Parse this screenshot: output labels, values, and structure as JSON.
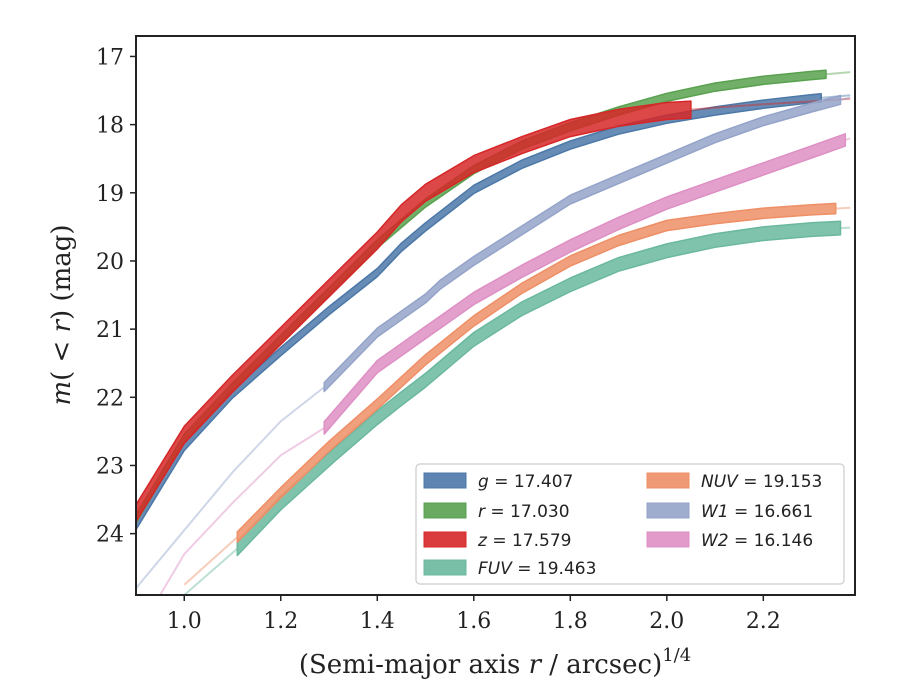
{
  "chart_data": {
    "type": "line",
    "title": "",
    "xlabel": "(Semi-major axis r / arcsec)",
    "xlabel_parts": {
      "prefix": "(Semi-major axis ",
      "var": "r",
      "suffix": " / arcsec)",
      "exponent": "1/4"
    },
    "ylabel": "m(< r) (mag)",
    "ylabel_parts": {
      "m": "m",
      "open": "(",
      "lt": " < ",
      "r": "r",
      "close": ")",
      "unit": " (mag)"
    },
    "xlim": [
      0.9,
      2.39
    ],
    "ylim": [
      24.9,
      16.7
    ],
    "y_inverted": true,
    "xticks": [
      1.0,
      1.2,
      1.4,
      1.6,
      1.8,
      2.0,
      2.2
    ],
    "xtick_labels": [
      "1.0",
      "1.2",
      "1.4",
      "1.6",
      "1.8",
      "2.0",
      "2.2"
    ],
    "yticks": [
      17,
      18,
      19,
      20,
      21,
      22,
      23,
      24
    ],
    "ytick_labels": [
      "17",
      "18",
      "19",
      "20",
      "21",
      "22",
      "23",
      "24"
    ],
    "grid": false,
    "legend_position": "lower-right",
    "legend_columns": 2,
    "series": [
      {
        "name": "g",
        "legend_label": "g = 17.407",
        "color": "#4C78A8",
        "band_width": 0.12,
        "x": [
          0.9,
          1.0,
          1.1,
          1.2,
          1.3,
          1.4,
          1.45,
          1.5,
          1.6,
          1.7,
          1.8,
          1.9,
          2.0,
          2.1,
          2.2,
          2.3,
          2.38
        ],
        "y": [
          23.88,
          22.72,
          21.95,
          21.33,
          20.73,
          20.17,
          19.8,
          19.5,
          18.95,
          18.58,
          18.3,
          18.08,
          17.92,
          17.8,
          17.7,
          17.62,
          17.57
        ],
        "faint_from": 2.32
      },
      {
        "name": "r",
        "legend_label": "r = 17.030",
        "color": "#59A14F",
        "band_width": 0.12,
        "x": [
          0.9,
          1.0,
          1.1,
          1.2,
          1.3,
          1.4,
          1.5,
          1.6,
          1.7,
          1.8,
          1.9,
          2.0,
          2.1,
          2.2,
          2.3,
          2.38
        ],
        "y": [
          23.78,
          22.6,
          21.85,
          21.15,
          20.45,
          19.75,
          19.15,
          18.66,
          18.3,
          18.03,
          17.8,
          17.6,
          17.45,
          17.35,
          17.28,
          17.23
        ],
        "faint_from": 2.33
      },
      {
        "name": "z",
        "legend_label": "z = 17.579",
        "color": "#D62728",
        "band_width": 0.25,
        "x": [
          0.9,
          1.0,
          1.1,
          1.2,
          1.3,
          1.4,
          1.45,
          1.5,
          1.6,
          1.7,
          1.8,
          1.9,
          2.0,
          2.05,
          2.1,
          2.2,
          2.3,
          2.38
        ],
        "y": [
          23.7,
          22.55,
          21.8,
          21.1,
          20.4,
          19.7,
          19.3,
          19.0,
          18.58,
          18.3,
          18.05,
          17.9,
          17.8,
          17.78,
          17.75,
          17.7,
          17.66,
          17.62
        ],
        "faint_from": 2.05
      },
      {
        "name": "FUV",
        "legend_label": "FUV = 19.463",
        "color": "#6AB89F",
        "band_width": 0.2,
        "x": [
          1.0,
          1.11,
          1.2,
          1.31,
          1.4,
          1.45,
          1.5,
          1.6,
          1.7,
          1.8,
          1.9,
          2.0,
          2.1,
          2.2,
          2.3,
          2.38
        ],
        "y": [
          24.9,
          24.22,
          23.55,
          22.85,
          22.3,
          22.02,
          21.75,
          21.15,
          20.7,
          20.35,
          20.05,
          19.85,
          19.7,
          19.6,
          19.54,
          19.51
        ],
        "faint_until": 1.11,
        "faint_from": 2.36
      },
      {
        "name": "NUV",
        "legend_label": "NUV = 19.153",
        "color": "#EE8F66",
        "band_width": 0.15,
        "x": [
          1.0,
          1.11,
          1.2,
          1.3,
          1.4,
          1.5,
          1.6,
          1.7,
          1.8,
          1.9,
          2.0,
          2.1,
          2.2,
          2.3,
          2.38
        ],
        "y": [
          24.75,
          24.05,
          23.4,
          22.72,
          22.1,
          21.45,
          20.88,
          20.4,
          20.0,
          19.7,
          19.48,
          19.38,
          19.3,
          19.25,
          19.22
        ],
        "faint_until": 1.11,
        "faint_from": 2.35
      },
      {
        "name": "W1",
        "legend_label": "W1 = 16.661",
        "color": "#94A3C9",
        "band_width": 0.13,
        "x": [
          0.9,
          1.0,
          1.1,
          1.2,
          1.29,
          1.4,
          1.5,
          1.53,
          1.6,
          1.7,
          1.8,
          1.9,
          2.0,
          2.1,
          2.2,
          2.3,
          2.38
        ],
        "y": [
          24.8,
          23.95,
          23.1,
          22.35,
          21.85,
          21.05,
          20.55,
          20.35,
          20.0,
          19.55,
          19.1,
          18.8,
          18.5,
          18.2,
          17.95,
          17.75,
          17.6
        ],
        "faint_until": 1.29,
        "faint_from": 2.36
      },
      {
        "name": "W2",
        "legend_label": "W2 = 16.146",
        "color": "#DE8FC4",
        "band_width": 0.18,
        "x": [
          0.95,
          1.0,
          1.1,
          1.2,
          1.29,
          1.4,
          1.5,
          1.53,
          1.6,
          1.7,
          1.8,
          1.9,
          2.0,
          2.1,
          2.2,
          2.3,
          2.38
        ],
        "y": [
          24.9,
          24.3,
          23.55,
          22.85,
          22.45,
          21.55,
          21.05,
          20.9,
          20.55,
          20.15,
          19.78,
          19.45,
          19.15,
          18.9,
          18.65,
          18.4,
          18.2
        ],
        "faint_until": 1.29,
        "faint_from": 2.37
      }
    ]
  }
}
